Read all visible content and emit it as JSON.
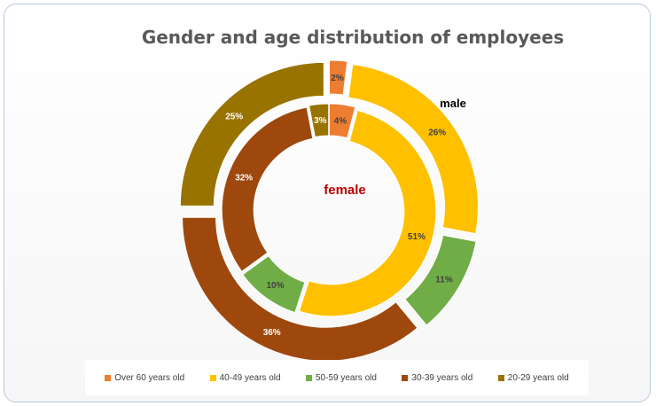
{
  "chart_data": {
    "type": "donut",
    "title": "Gender and age distribution of employees",
    "categories": [
      "Over 60 years old",
      "40-49 years old",
      "50-59 years old",
      "30-39 years old",
      "20-29 years old"
    ],
    "colors": [
      "#ED7D31",
      "#FFC000",
      "#70AD47",
      "#9E480E",
      "#997300"
    ],
    "series": [
      {
        "name": "male",
        "label_color": "#000000",
        "values": [
          2,
          26,
          11,
          36,
          25
        ],
        "labels": [
          "2%",
          "26%",
          "11%",
          "36%",
          "25%"
        ]
      },
      {
        "name": "female",
        "label_color": "#c00000",
        "values": [
          4,
          51,
          10,
          32,
          3
        ],
        "labels": [
          "4%",
          "51%",
          "10%",
          "32%",
          "3%"
        ]
      }
    ],
    "legend": "bottom"
  }
}
